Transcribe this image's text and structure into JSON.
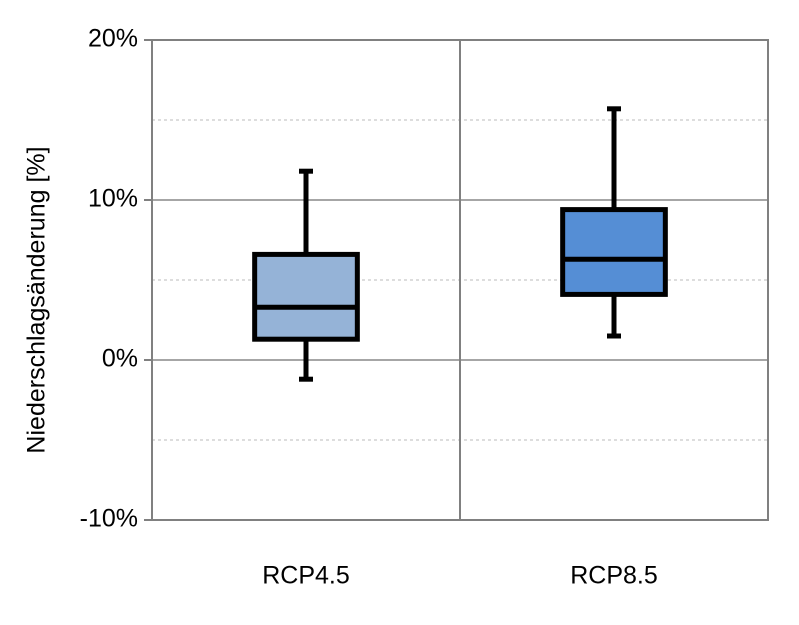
{
  "chart_data": {
    "type": "box",
    "y_label": "Niederschlagsänderung [%]",
    "categories": [
      "RCP4.5",
      "RCP8.5"
    ],
    "colors": [
      "#95b3d7",
      "#558ed5"
    ],
    "boxes": [
      {
        "min": -1.2,
        "q1": 1.3,
        "median": 3.3,
        "q3": 6.6,
        "max": 11.8
      },
      {
        "min": 1.5,
        "q1": 4.1,
        "median": 6.3,
        "q3": 9.4,
        "max": 15.7
      }
    ],
    "ylim": [
      -10,
      20
    ],
    "yticks": [
      {
        "value": -10,
        "label": "-10%"
      },
      {
        "value": 0,
        "label": "0%"
      },
      {
        "value": 10,
        "label": "10%"
      },
      {
        "value": 20,
        "label": "20%"
      }
    ],
    "minor_yticks": [
      -5,
      5,
      15
    ],
    "grid": true
  }
}
